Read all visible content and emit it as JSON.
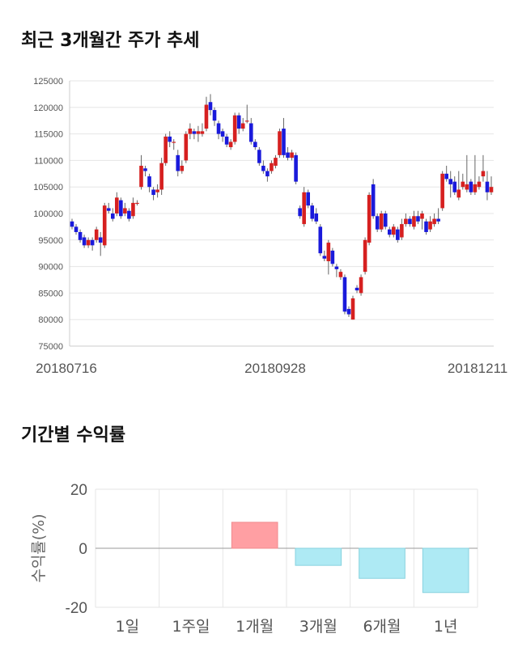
{
  "titles": {
    "price_chart": "최근 3개월간 주가 추세",
    "returns_chart": "기간별 수익률"
  },
  "chart_data": [
    {
      "type": "candlestick",
      "title": "최근 3개월간 주가 추세",
      "ylim": [
        75000,
        125000
      ],
      "y_ticks": [
        125000,
        120000,
        115000,
        110000,
        105000,
        100000,
        95000,
        90000,
        85000,
        80000,
        75000
      ],
      "x_tick_labels": [
        "20180716",
        "20180928",
        "20181211"
      ],
      "grid": true,
      "colors": {
        "up": "#d62020",
        "down": "#1a1adb",
        "wick": "#666666",
        "grid": "#e5e5e5"
      },
      "candles": [
        [
          98500,
          97500,
          99000,
          97000
        ],
        [
          97500,
          96500,
          98000,
          96000
        ],
        [
          96500,
          95000,
          97000,
          94500
        ],
        [
          95500,
          94000,
          96000,
          93500
        ],
        [
          94000,
          95000,
          95500,
          93500
        ],
        [
          95000,
          94000,
          95500,
          93000
        ],
        [
          95000,
          97000,
          97500,
          94500
        ],
        [
          95500,
          94500,
          96500,
          92000
        ],
        [
          94000,
          101500,
          102000,
          93500
        ],
        [
          101000,
          100500,
          102000,
          100000
        ],
        [
          100000,
          99000,
          101000,
          98500
        ],
        [
          100000,
          103000,
          104000,
          99500
        ],
        [
          102500,
          99500,
          103000,
          99000
        ],
        [
          100000,
          101000,
          102000,
          99500
        ],
        [
          100500,
          99000,
          101000,
          98500
        ],
        [
          99500,
          102000,
          103000,
          99000
        ],
        [
          102000,
          102000,
          102500,
          101500
        ],
        [
          105000,
          109000,
          111000,
          104500
        ],
        [
          108500,
          108000,
          109000,
          107000
        ],
        [
          107000,
          105000,
          107500,
          104000
        ],
        [
          104500,
          103500,
          105000,
          102500
        ],
        [
          104000,
          104500,
          105500,
          103000
        ],
        [
          104500,
          109500,
          110500,
          103500
        ],
        [
          109500,
          114500,
          115000,
          109000
        ],
        [
          114500,
          113500,
          115500,
          112500
        ],
        [
          113500,
          113500,
          114000,
          112000
        ],
        [
          111000,
          108000,
          112000,
          107000
        ],
        [
          108000,
          109000,
          110000,
          107500
        ],
        [
          110000,
          115000,
          115500,
          109500
        ],
        [
          115000,
          116000,
          117000,
          114000
        ],
        [
          115500,
          115000,
          116000,
          114000
        ],
        [
          115000,
          115500,
          116500,
          113500
        ],
        [
          115000,
          115500,
          117000,
          114500
        ],
        [
          116000,
          120500,
          122000,
          115500
        ],
        [
          121000,
          119500,
          122500,
          118500
        ],
        [
          119500,
          117500,
          120000,
          116500
        ],
        [
          117000,
          115000,
          117500,
          114000
        ],
        [
          115500,
          114500,
          116000,
          113500
        ],
        [
          114500,
          113000,
          115000,
          112500
        ],
        [
          112500,
          113500,
          114000,
          112000
        ],
        [
          113500,
          118500,
          119000,
          113000
        ],
        [
          118500,
          116000,
          119000,
          115000
        ],
        [
          116000,
          117000,
          118000,
          115500
        ],
        [
          117500,
          117500,
          120500,
          117000
        ],
        [
          117000,
          113500,
          118000,
          113000
        ],
        [
          113500,
          112500,
          114000,
          112000
        ],
        [
          112000,
          109500,
          112500,
          109000
        ],
        [
          109000,
          108000,
          110000,
          107500
        ],
        [
          108000,
          107000,
          108500,
          106000
        ],
        [
          108000,
          109500,
          110000,
          107500
        ],
        [
          109000,
          110500,
          111000,
          108500
        ],
        [
          111000,
          115500,
          116000,
          110500
        ],
        [
          116000,
          111000,
          118000,
          110500
        ],
        [
          111500,
          110500,
          112500,
          110000
        ],
        [
          110500,
          111500,
          112000,
          110000
        ],
        [
          111000,
          106000,
          111500,
          105500
        ],
        [
          101000,
          99500,
          101500,
          99000
        ],
        [
          98000,
          104000,
          105000,
          97500
        ],
        [
          104000,
          101500,
          104500,
          101000
        ],
        [
          101500,
          99000,
          102000,
          98500
        ],
        [
          100000,
          98500,
          101000,
          98000
        ],
        [
          97500,
          92500,
          98000,
          92000
        ],
        [
          92000,
          91500,
          93000,
          91000
        ],
        [
          91000,
          94500,
          95000,
          88500
        ],
        [
          93000,
          90500,
          93500,
          90000
        ],
        [
          90000,
          89500,
          90500,
          88000
        ],
        [
          88000,
          89000,
          89500,
          87500
        ],
        [
          88000,
          81500,
          88500,
          81000
        ],
        [
          82000,
          81000,
          82500,
          80500
        ],
        [
          80000,
          84000,
          84500,
          80000
        ],
        [
          86000,
          85500,
          86500,
          85000
        ],
        [
          85000,
          88000,
          88500,
          84500
        ],
        [
          89000,
          95000,
          95500,
          88500
        ],
        [
          94500,
          103500,
          104000,
          94000
        ],
        [
          105500,
          99500,
          106500,
          99000
        ],
        [
          99500,
          97000,
          100000,
          96500
        ],
        [
          97000,
          100000,
          100500,
          96500
        ],
        [
          100000,
          97500,
          100500,
          97000
        ],
        [
          97000,
          96000,
          97500,
          95500
        ],
        [
          96000,
          97500,
          98000,
          95500
        ],
        [
          97000,
          95000,
          97500,
          94500
        ],
        [
          95500,
          98000,
          99000,
          95000
        ],
        [
          98000,
          99000,
          100000,
          97500
        ],
        [
          99000,
          98000,
          99500,
          97500
        ],
        [
          97500,
          99500,
          100500,
          97000
        ],
        [
          99500,
          98500,
          100500,
          98000
        ],
        [
          99000,
          100000,
          100500,
          97000
        ],
        [
          98500,
          96500,
          99000,
          96000
        ],
        [
          97000,
          98500,
          99500,
          96500
        ],
        [
          98000,
          99000,
          100000,
          97500
        ],
        [
          99000,
          98500,
          101000,
          98000
        ],
        [
          101000,
          107500,
          108000,
          100500
        ],
        [
          107500,
          106500,
          109000,
          106000
        ],
        [
          106500,
          105500,
          108000,
          103000
        ],
        [
          106000,
          104000,
          107000,
          103500
        ],
        [
          103000,
          104500,
          108000,
          102500
        ],
        [
          105000,
          106000,
          107500,
          104500
        ],
        [
          104500,
          105500,
          111000,
          104000
        ],
        [
          106000,
          104000,
          106500,
          103500
        ],
        [
          104000,
          105500,
          111000,
          103500
        ],
        [
          105000,
          106000,
          107000,
          104500
        ],
        [
          107000,
          108000,
          111000,
          106000
        ],
        [
          106000,
          104000,
          108000,
          102500
        ],
        [
          104000,
          105000,
          107000,
          103500
        ]
      ]
    },
    {
      "type": "bar",
      "title": "기간별 수익률",
      "categories": [
        "1일",
        "1주일",
        "1개월",
        "3개월",
        "6개월",
        "1년"
      ],
      "values": [
        0,
        0,
        8.8,
        -5.8,
        -10.2,
        -15.0
      ],
      "ylabel": "수익률(%)",
      "ylim": [
        -20,
        20
      ],
      "y_ticks": [
        20,
        0,
        -20
      ],
      "grid": true,
      "colors": {
        "positive": "#ff9fa3",
        "positive_edge": "#f08a8e",
        "negative": "#aeeaf4",
        "negative_edge": "#88d2df"
      }
    }
  ]
}
